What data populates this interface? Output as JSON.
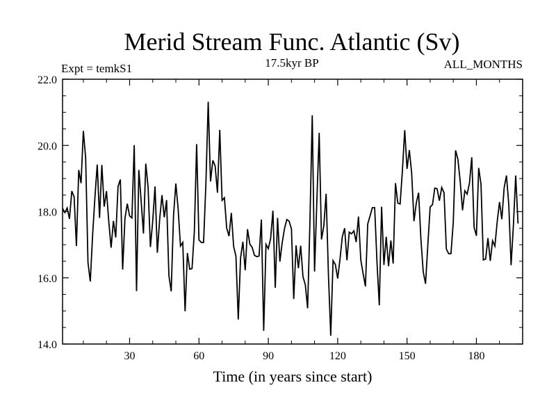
{
  "chart_data": {
    "type": "line",
    "title": "Merid Stream Func. Atlantic (Sv)",
    "left_label": "Expt = temkS1",
    "center_label": "17.5kyr BP",
    "right_label": "ALL_MONTHS",
    "xlabel": "Time (in years since start)",
    "ylabel": "",
    "xlim": [
      1,
      200
    ],
    "ylim": [
      14.0,
      22.0
    ],
    "x_ticks": [
      30,
      60,
      90,
      120,
      150,
      180
    ],
    "x_tick_labels": [
      "30",
      "60",
      "90",
      "120",
      "150",
      "180"
    ],
    "y_ticks": [
      14.0,
      16.0,
      18.0,
      20.0,
      22.0
    ],
    "y_tick_labels": [
      "14.0",
      "16.0",
      "18.0",
      "20.0",
      "22.0"
    ],
    "grid": false,
    "series": [
      {
        "name": "temkS1",
        "color": "#000000",
        "x_start": 1,
        "x_step": 1,
        "values": [
          18.1,
          17.97,
          18.11,
          17.78,
          18.62,
          18.45,
          16.96,
          19.26,
          18.86,
          20.44,
          19.61,
          16.46,
          15.89,
          17.29,
          18.43,
          19.42,
          17.81,
          19.41,
          18.15,
          18.62,
          17.7,
          16.91,
          17.72,
          17.22,
          18.76,
          18.97,
          16.25,
          17.8,
          18.24,
          17.87,
          17.81,
          20.01,
          15.6,
          19.26,
          18.31,
          17.34,
          19.45,
          18.74,
          16.93,
          17.71,
          18.76,
          16.76,
          17.76,
          18.5,
          17.83,
          18.35,
          16.07,
          15.59,
          17.88,
          18.85,
          18.08,
          16.96,
          17.07,
          14.99,
          16.75,
          16.26,
          16.28,
          17.39,
          20.04,
          17.15,
          17.07,
          17.07,
          18.84,
          21.32,
          18.91,
          19.55,
          19.38,
          18.57,
          20.47,
          18.34,
          18.42,
          17.5,
          17.26,
          17.96,
          16.95,
          16.65,
          14.74,
          16.61,
          17.09,
          16.23,
          17.47,
          17.02,
          16.92,
          16.68,
          16.64,
          16.66,
          17.76,
          14.4,
          17.01,
          16.88,
          17.19,
          18.03,
          15.7,
          17.81,
          16.49,
          17.06,
          17.49,
          17.76,
          17.71,
          17.48,
          15.36,
          16.98,
          16.29,
          16.97,
          16.03,
          15.79,
          15.08,
          17.68,
          20.91,
          16.19,
          18.33,
          20.38,
          17.16,
          17.57,
          18.54,
          16.1,
          14.25,
          16.52,
          16.4,
          15.98,
          16.56,
          17.24,
          17.5,
          16.53,
          17.38,
          17.33,
          17.42,
          17.08,
          17.85,
          16.54,
          16.13,
          15.74,
          17.63,
          17.87,
          18.12,
          18.12,
          16.48,
          15.17,
          18.15,
          16.39,
          17.24,
          16.35,
          17.13,
          16.43,
          18.86,
          18.26,
          18.23,
          19.25,
          20.46,
          19.29,
          19.86,
          19.17,
          17.71,
          18.26,
          18.57,
          17.17,
          16.18,
          15.82,
          17.0,
          18.14,
          18.21,
          18.71,
          18.69,
          18.33,
          18.73,
          18.57,
          16.87,
          16.73,
          16.73,
          17.68,
          19.85,
          19.58,
          18.91,
          18.04,
          18.63,
          18.53,
          18.86,
          19.64,
          17.53,
          17.27,
          19.32,
          18.82,
          16.54,
          16.57,
          17.2,
          16.51,
          17.12,
          16.96,
          17.7,
          18.29,
          17.77,
          18.72,
          19.09,
          18.22,
          16.38,
          17.58,
          19.09,
          17.64
        ]
      }
    ]
  }
}
